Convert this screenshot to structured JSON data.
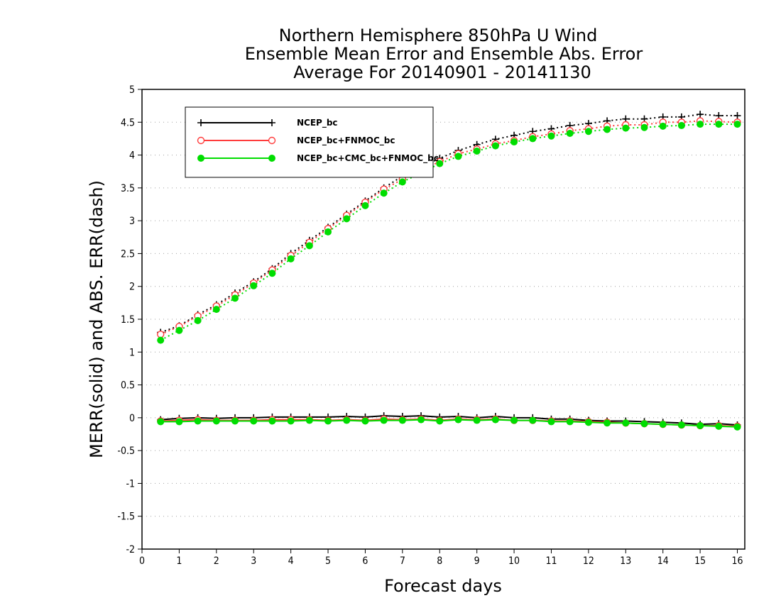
{
  "chart_data": {
    "type": "line",
    "title_lines": [
      "Northern Hemisphere 850hPa U Wind",
      "Ensemble Mean Error and Ensemble Abs. Error",
      "Average For 20140901 - 20141130"
    ],
    "xlabel": "Forecast days",
    "ylabel": "MERR(solid) and ABS. ERR(dash)",
    "xlim": [
      0,
      16.2
    ],
    "ylim": [
      -2,
      5
    ],
    "xticks": [
      0,
      1,
      2,
      3,
      4,
      5,
      6,
      7,
      8,
      9,
      10,
      11,
      12,
      13,
      14,
      15,
      16
    ],
    "yticks": [
      -2,
      -1.5,
      -1,
      -0.5,
      0,
      0.5,
      1,
      1.5,
      2,
      2.5,
      3,
      3.5,
      4,
      4.5,
      5
    ],
    "ytick_labels": [
      "-2",
      "-1.5",
      "-1",
      "-0.5",
      "0",
      "0.5",
      "1",
      "1.5",
      "2",
      "2.5",
      "3",
      "3.5",
      "4",
      "4.5",
      "5"
    ],
    "grid": "horizontal dotted",
    "legend_position": "top-left",
    "x": [
      0.5,
      1,
      1.5,
      2,
      2.5,
      3,
      3.5,
      4,
      4.5,
      5,
      5.5,
      6,
      6.5,
      7,
      7.5,
      8,
      8.5,
      9,
      9.5,
      10,
      10.5,
      11,
      11.5,
      12,
      12.5,
      13,
      13.5,
      14,
      14.5,
      15,
      15.5,
      16
    ],
    "series": [
      {
        "name": "NCEP_bc",
        "color": "#000000",
        "marker": "plus",
        "merr": [
          -0.03,
          -0.01,
          0.0,
          -0.01,
          0.0,
          0.0,
          0.01,
          0.01,
          0.01,
          0.01,
          0.02,
          0.01,
          0.03,
          0.02,
          0.03,
          0.01,
          0.02,
          0.0,
          0.02,
          0.0,
          0.0,
          -0.02,
          -0.02,
          -0.04,
          -0.05,
          -0.05,
          -0.06,
          -0.07,
          -0.08,
          -0.1,
          -0.09,
          -0.11
        ],
        "abs_err": [
          1.3,
          1.4,
          1.57,
          1.72,
          1.9,
          2.07,
          2.27,
          2.5,
          2.7,
          2.9,
          3.1,
          3.3,
          3.5,
          3.68,
          3.82,
          3.95,
          4.07,
          4.16,
          4.24,
          4.3,
          4.36,
          4.4,
          4.45,
          4.48,
          4.52,
          4.55,
          4.55,
          4.58,
          4.58,
          4.62,
          4.6,
          4.6
        ]
      },
      {
        "name": "NCEP_bc+FNMOC_bc",
        "color": "#ff3c3c",
        "marker": "open-circle",
        "merr": [
          -0.05,
          -0.04,
          -0.03,
          -0.04,
          -0.04,
          -0.04,
          -0.03,
          -0.03,
          -0.03,
          -0.04,
          -0.03,
          -0.04,
          -0.02,
          -0.03,
          -0.02,
          -0.04,
          -0.02,
          -0.03,
          -0.02,
          -0.04,
          -0.04,
          -0.05,
          -0.05,
          -0.06,
          -0.07,
          -0.08,
          -0.09,
          -0.1,
          -0.11,
          -0.12,
          -0.12,
          -0.13
        ],
        "abs_err": [
          1.27,
          1.39,
          1.55,
          1.7,
          1.87,
          2.05,
          2.25,
          2.47,
          2.67,
          2.88,
          3.08,
          3.28,
          3.48,
          3.63,
          3.77,
          3.9,
          4.02,
          4.09,
          4.17,
          4.22,
          4.28,
          4.32,
          4.37,
          4.4,
          4.44,
          4.46,
          4.46,
          4.5,
          4.5,
          4.52,
          4.51,
          4.5
        ]
      },
      {
        "name": "NCEP_bc+CMC_bc+FNMOC_bc",
        "color": "#00dd00",
        "marker": "filled-circle",
        "merr": [
          -0.06,
          -0.06,
          -0.05,
          -0.05,
          -0.05,
          -0.05,
          -0.05,
          -0.05,
          -0.04,
          -0.05,
          -0.04,
          -0.05,
          -0.04,
          -0.04,
          -0.03,
          -0.05,
          -0.03,
          -0.04,
          -0.03,
          -0.04,
          -0.04,
          -0.06,
          -0.06,
          -0.07,
          -0.08,
          -0.08,
          -0.09,
          -0.1,
          -0.11,
          -0.12,
          -0.13,
          -0.14
        ],
        "abs_err": [
          1.18,
          1.33,
          1.48,
          1.65,
          1.82,
          2.01,
          2.2,
          2.42,
          2.62,
          2.83,
          3.03,
          3.23,
          3.42,
          3.59,
          3.73,
          3.87,
          3.98,
          4.06,
          4.14,
          4.2,
          4.25,
          4.29,
          4.33,
          4.36,
          4.39,
          4.41,
          4.42,
          4.44,
          4.45,
          4.47,
          4.47,
          4.47
        ]
      }
    ]
  }
}
